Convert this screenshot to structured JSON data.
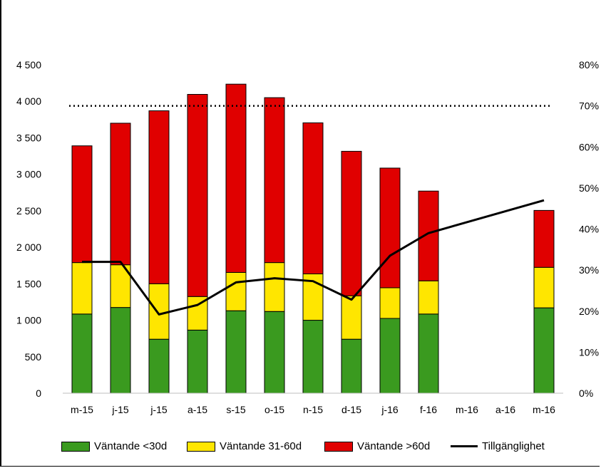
{
  "chart_data": {
    "type": "bar",
    "stacked": true,
    "title": "",
    "categories": [
      "m-15",
      "j-15",
      "j-15",
      "a-15",
      "s-15",
      "o-15",
      "n-15",
      "d-15",
      "j-16",
      "f-16",
      "m-16",
      "a-16",
      "m-16"
    ],
    "y_left": {
      "range": [
        0,
        4500
      ],
      "ticks": [
        0,
        500,
        1000,
        1500,
        2000,
        2500,
        3000,
        3500,
        4000,
        4500
      ],
      "tick_labels": [
        "0",
        "500",
        "1 000",
        "1 500",
        "2 000",
        "2 500",
        "3 000",
        "3 500",
        "4 000",
        "4 500"
      ]
    },
    "y_right": {
      "range": [
        0,
        80
      ],
      "ticks": [
        0,
        10,
        20,
        30,
        40,
        50,
        60,
        70,
        80
      ],
      "tick_labels": [
        "0%",
        "10%",
        "20%",
        "30%",
        "40%",
        "50%",
        "60%",
        "70%",
        "80%"
      ]
    },
    "series": [
      {
        "name": "Väntande <30d",
        "axis": "left",
        "kind": "bar",
        "color": "#3a9a1f",
        "values": [
          1085,
          1175,
          740,
          865,
          1130,
          1120,
          1000,
          740,
          1025,
          1085,
          null,
          null,
          1170
        ]
      },
      {
        "name": "Väntande 31-60d",
        "axis": "left",
        "kind": "bar",
        "color": "#ffe600",
        "values": [
          705,
          585,
          760,
          460,
          525,
          670,
          635,
          595,
          420,
          455,
          null,
          null,
          555
        ]
      },
      {
        "name": "Väntande >60d",
        "axis": "left",
        "kind": "bar",
        "color": "#e00000",
        "values": [
          1600,
          1940,
          2370,
          2770,
          2580,
          2260,
          2070,
          1980,
          1640,
          1230,
          null,
          null,
          780
        ]
      },
      {
        "name": "Tillgänglighet",
        "axis": "right",
        "kind": "line",
        "color": "#000000",
        "values": [
          32,
          32,
          19.2,
          21.5,
          27,
          28,
          27.3,
          22.8,
          33.5,
          39,
          null,
          null,
          47
        ]
      }
    ],
    "reference_line": {
      "axis": "right",
      "value": 70,
      "style": "dotted",
      "color": "#000000"
    },
    "grid": false,
    "legend_position": "bottom"
  }
}
